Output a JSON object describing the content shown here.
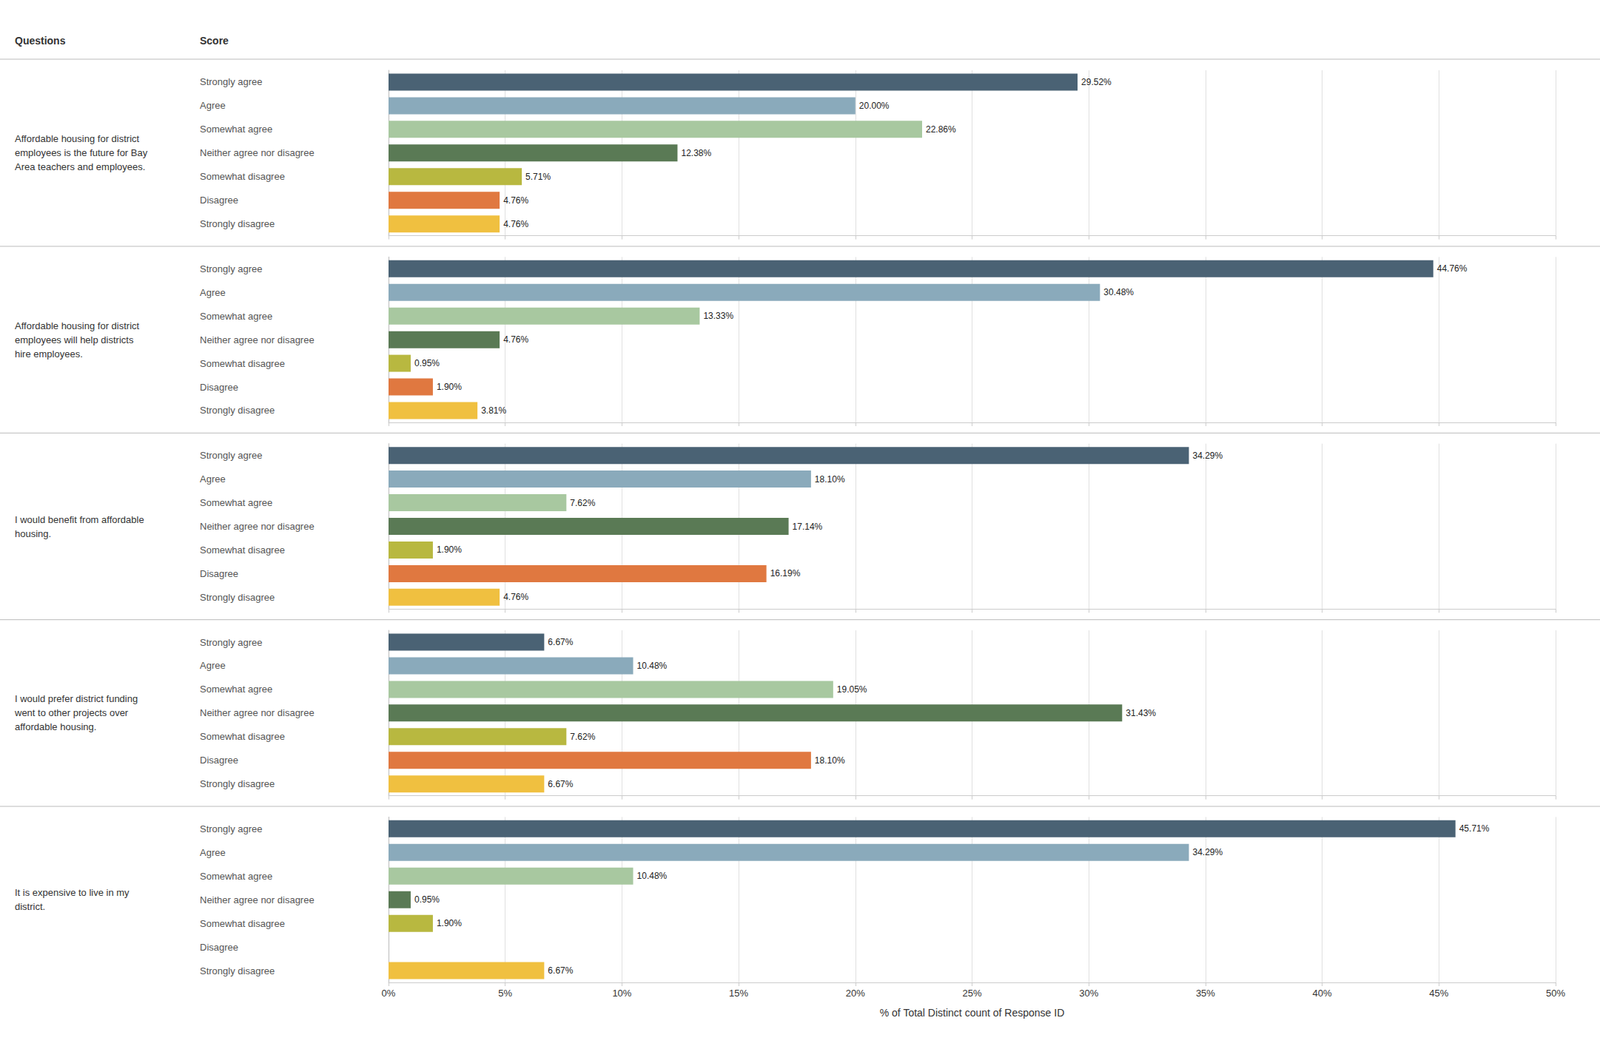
{
  "chart_data": [
    {
      "type": "bar",
      "orientation": "horizontal",
      "title": "Affordable housing for district\nemployees is the future for Bay\nArea teachers and employees.",
      "annotations": [
        "Questions",
        "Score"
      ],
      "categories": [
        "Strongly agree",
        "Agree",
        "Somewhat agree",
        "Neither agree nor disagree",
        "Somewhat disagree",
        "Disagree",
        "Strongly disagree"
      ],
      "values": [
        29.52,
        20.0,
        22.86,
        12.38,
        5.71,
        4.76,
        4.76
      ],
      "value_labels": [
        "29.52%",
        "20.00%",
        "22.86%",
        "12.38%",
        "5.71%",
        "4.76%",
        "4.76%"
      ],
      "colors": [
        "#4a6274",
        "#8aaabb",
        "#a8c8a0",
        "#5a7a55",
        "#b8b840",
        "#e07840",
        "#f0c040"
      ],
      "data_labels": true,
      "grid": true,
      "tick_labels": "y",
      "xlim": [
        0,
        50
      ],
      "xticks": [
        {
          "value": 0,
          "label": "0%"
        },
        {
          "value": 5,
          "label": "5%"
        },
        {
          "value": 10,
          "label": "10%"
        },
        {
          "value": 15,
          "label": "15%"
        },
        {
          "value": 20,
          "label": "20%"
        },
        {
          "value": 25,
          "label": "25%"
        },
        {
          "value": 30,
          "label": "30%"
        },
        {
          "value": 35,
          "label": "35%"
        },
        {
          "value": 40,
          "label": "40%"
        },
        {
          "value": 45,
          "label": "45%"
        },
        {
          "value": 50,
          "label": "50%"
        }
      ]
    },
    {
      "type": "bar",
      "orientation": "horizontal",
      "title": "Affordable housing for district\nemployees will help districts\nhire employees.",
      "categories": [
        "Strongly agree",
        "Agree",
        "Somewhat agree",
        "Neither agree nor disagree",
        "Somewhat disagree",
        "Disagree",
        "Strongly disagree"
      ],
      "values": [
        44.76,
        30.48,
        13.33,
        4.76,
        0.95,
        1.9,
        3.81
      ],
      "value_labels": [
        "44.76%",
        "30.48%",
        "13.33%",
        "4.76%",
        "0.95%",
        "1.90%",
        "3.81%"
      ],
      "colors": [
        "#4a6274",
        "#8aaabb",
        "#a8c8a0",
        "#5a7a55",
        "#b8b840",
        "#e07840",
        "#f0c040"
      ],
      "data_labels": true,
      "grid": true,
      "tick_labels": "y",
      "xlim": [
        0,
        50
      ],
      "xticks": [
        {
          "value": 0,
          "label": "0%"
        },
        {
          "value": 5,
          "label": "5%"
        },
        {
          "value": 10,
          "label": "10%"
        },
        {
          "value": 15,
          "label": "15%"
        },
        {
          "value": 20,
          "label": "20%"
        },
        {
          "value": 25,
          "label": "25%"
        },
        {
          "value": 30,
          "label": "30%"
        },
        {
          "value": 35,
          "label": "35%"
        },
        {
          "value": 40,
          "label": "40%"
        },
        {
          "value": 45,
          "label": "45%"
        },
        {
          "value": 50,
          "label": "50%"
        }
      ]
    },
    {
      "type": "bar",
      "orientation": "horizontal",
      "title": "I would benefit from affordable\nhousing.",
      "categories": [
        "Strongly agree",
        "Agree",
        "Somewhat agree",
        "Neither agree nor disagree",
        "Somewhat disagree",
        "Disagree",
        "Strongly disagree"
      ],
      "values": [
        34.29,
        18.1,
        7.62,
        17.14,
        1.9,
        16.19,
        4.76
      ],
      "value_labels": [
        "34.29%",
        "18.10%",
        "7.62%",
        "17.14%",
        "1.90%",
        "16.19%",
        "4.76%"
      ],
      "colors": [
        "#4a6274",
        "#8aaabb",
        "#a8c8a0",
        "#5a7a55",
        "#b8b840",
        "#e07840",
        "#f0c040"
      ],
      "data_labels": true,
      "grid": true,
      "tick_labels": "y",
      "xlim": [
        0,
        50
      ],
      "xticks": [
        {
          "value": 0,
          "label": "0%"
        },
        {
          "value": 5,
          "label": "5%"
        },
        {
          "value": 10,
          "label": "10%"
        },
        {
          "value": 15,
          "label": "15%"
        },
        {
          "value": 20,
          "label": "20%"
        },
        {
          "value": 25,
          "label": "25%"
        },
        {
          "value": 30,
          "label": "30%"
        },
        {
          "value": 35,
          "label": "35%"
        },
        {
          "value": 40,
          "label": "40%"
        },
        {
          "value": 45,
          "label": "45%"
        },
        {
          "value": 50,
          "label": "50%"
        }
      ]
    },
    {
      "type": "bar",
      "orientation": "horizontal",
      "title": "I would prefer district funding\nwent to other projects over\naffordable housing.",
      "categories": [
        "Strongly agree",
        "Agree",
        "Somewhat agree",
        "Neither agree nor disagree",
        "Somewhat disagree",
        "Disagree",
        "Strongly disagree"
      ],
      "values": [
        6.67,
        10.48,
        19.05,
        31.43,
        7.62,
        18.1,
        6.67
      ],
      "value_labels": [
        "6.67%",
        "10.48%",
        "19.05%",
        "31.43%",
        "7.62%",
        "18.10%",
        "6.67%"
      ],
      "colors": [
        "#4a6274",
        "#8aaabb",
        "#a8c8a0",
        "#5a7a55",
        "#b8b840",
        "#e07840",
        "#f0c040"
      ],
      "data_labels": true,
      "grid": true,
      "tick_labels": "y",
      "xlim": [
        0,
        50
      ],
      "xticks": [
        {
          "value": 0,
          "label": "0%"
        },
        {
          "value": 5,
          "label": "5%"
        },
        {
          "value": 10,
          "label": "10%"
        },
        {
          "value": 15,
          "label": "15%"
        },
        {
          "value": 20,
          "label": "20%"
        },
        {
          "value": 25,
          "label": "25%"
        },
        {
          "value": 30,
          "label": "30%"
        },
        {
          "value": 35,
          "label": "35%"
        },
        {
          "value": 40,
          "label": "40%"
        },
        {
          "value": 45,
          "label": "45%"
        },
        {
          "value": 50,
          "label": "50%"
        }
      ]
    },
    {
      "type": "bar",
      "orientation": "horizontal",
      "title": "It is expensive to live in my\ndistrict.",
      "xlabel": "% of Total Distinct count of Response ID",
      "categories": [
        "Strongly agree",
        "Agree",
        "Somewhat agree",
        "Neither agree nor disagree",
        "Somewhat disagree",
        "Disagree",
        "Strongly disagree"
      ],
      "values": [
        45.71,
        34.29,
        10.48,
        0.95,
        1.9,
        0.0,
        6.67
      ],
      "value_labels": [
        "45.71%",
        "34.29%",
        "10.48%",
        "0.95%",
        "1.90%",
        null,
        "6.67%"
      ],
      "colors": [
        "#4a6274",
        "#8aaabb",
        "#a8c8a0",
        "#5a7a55",
        "#b8b840",
        "#e07840",
        "#f0c040"
      ],
      "data_labels": true,
      "grid": true,
      "xlim": [
        0,
        50
      ],
      "xticks": [
        {
          "value": 0,
          "label": "0%"
        },
        {
          "value": 5,
          "label": "5%"
        },
        {
          "value": 10,
          "label": "10%"
        },
        {
          "value": 15,
          "label": "15%"
        },
        {
          "value": 20,
          "label": "20%"
        },
        {
          "value": 25,
          "label": "25%"
        },
        {
          "value": 30,
          "label": "30%"
        },
        {
          "value": 35,
          "label": "35%"
        },
        {
          "value": 40,
          "label": "40%"
        },
        {
          "value": 45,
          "label": "45%"
        },
        {
          "value": 50,
          "label": "50%"
        }
      ]
    }
  ]
}
